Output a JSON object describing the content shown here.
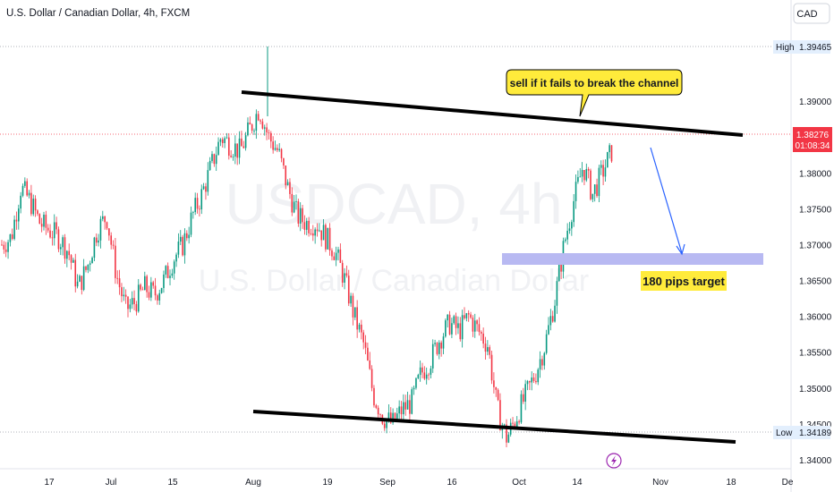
{
  "header": {
    "symbol_title": "U.S. Dollar / Canadian Dollar, 4h, FXCM",
    "currency_button": "CAD"
  },
  "watermark": {
    "line1": "USDCAD, 4h",
    "line2": "U.S. Dollar / Canadian Dollar"
  },
  "colors": {
    "up": "#089981",
    "down": "#f23645",
    "highlight": "#ffeb3b",
    "zone": "#b8b9f2",
    "arrow": "#2962ff",
    "price_tag": "#f23645"
  },
  "chart_data": {
    "type": "candlestick",
    "title": "U.S. Dollar / Canadian Dollar, 4h, FXCM",
    "y_range": [
      1.3385,
      1.3985
    ],
    "y_ticks": [
      "1.39000",
      "1.38500",
      "1.38000",
      "1.37500",
      "1.37000",
      "1.36500",
      "1.36000",
      "1.35500",
      "1.35000",
      "1.34500",
      "1.34000"
    ],
    "x_ticks": [
      "17",
      "Jul",
      "15",
      "Aug",
      "19",
      "Sep",
      "16",
      "Oct",
      "14",
      "Nov",
      "18",
      "De"
    ],
    "high": {
      "label": "High",
      "value": "1.39465"
    },
    "low": {
      "label": "Low",
      "value": "1.34189"
    },
    "last_price": {
      "value": "1.38276",
      "countdown": "01:08:34"
    },
    "price_path": [
      1.37,
      1.371,
      1.378,
      1.376,
      1.373,
      1.372,
      1.371,
      1.369,
      1.364,
      1.367,
      1.372,
      1.374,
      1.366,
      1.361,
      1.362,
      1.364,
      1.363,
      1.365,
      1.368,
      1.37,
      1.374,
      1.377,
      1.381,
      1.385,
      1.384,
      1.383,
      1.386,
      1.389,
      1.385,
      1.383,
      1.378,
      1.374,
      1.373,
      1.373,
      1.371,
      1.369,
      1.365,
      1.36,
      1.356,
      1.349,
      1.346,
      1.345,
      1.347,
      1.348,
      1.352,
      1.354,
      1.357,
      1.359,
      1.358,
      1.36,
      1.358,
      1.356,
      1.347,
      1.343,
      1.346,
      1.349,
      1.352,
      1.356,
      1.362,
      1.37,
      1.376,
      1.381,
      1.377,
      1.38,
      1.383
    ],
    "annotations": {
      "callout": "sell if it fails to break the channel",
      "target_label": "180 pips target",
      "target_zone": [
        1.365,
        1.3665
      ],
      "upper_channel": [
        [
          "Jul 31",
          1.3885
        ],
        [
          "Nov 28",
          1.3829
        ]
      ],
      "lower_channel": [
        [
          "Jul 31",
          1.345
        ],
        [
          "Nov 28",
          1.3403
        ]
      ]
    }
  }
}
